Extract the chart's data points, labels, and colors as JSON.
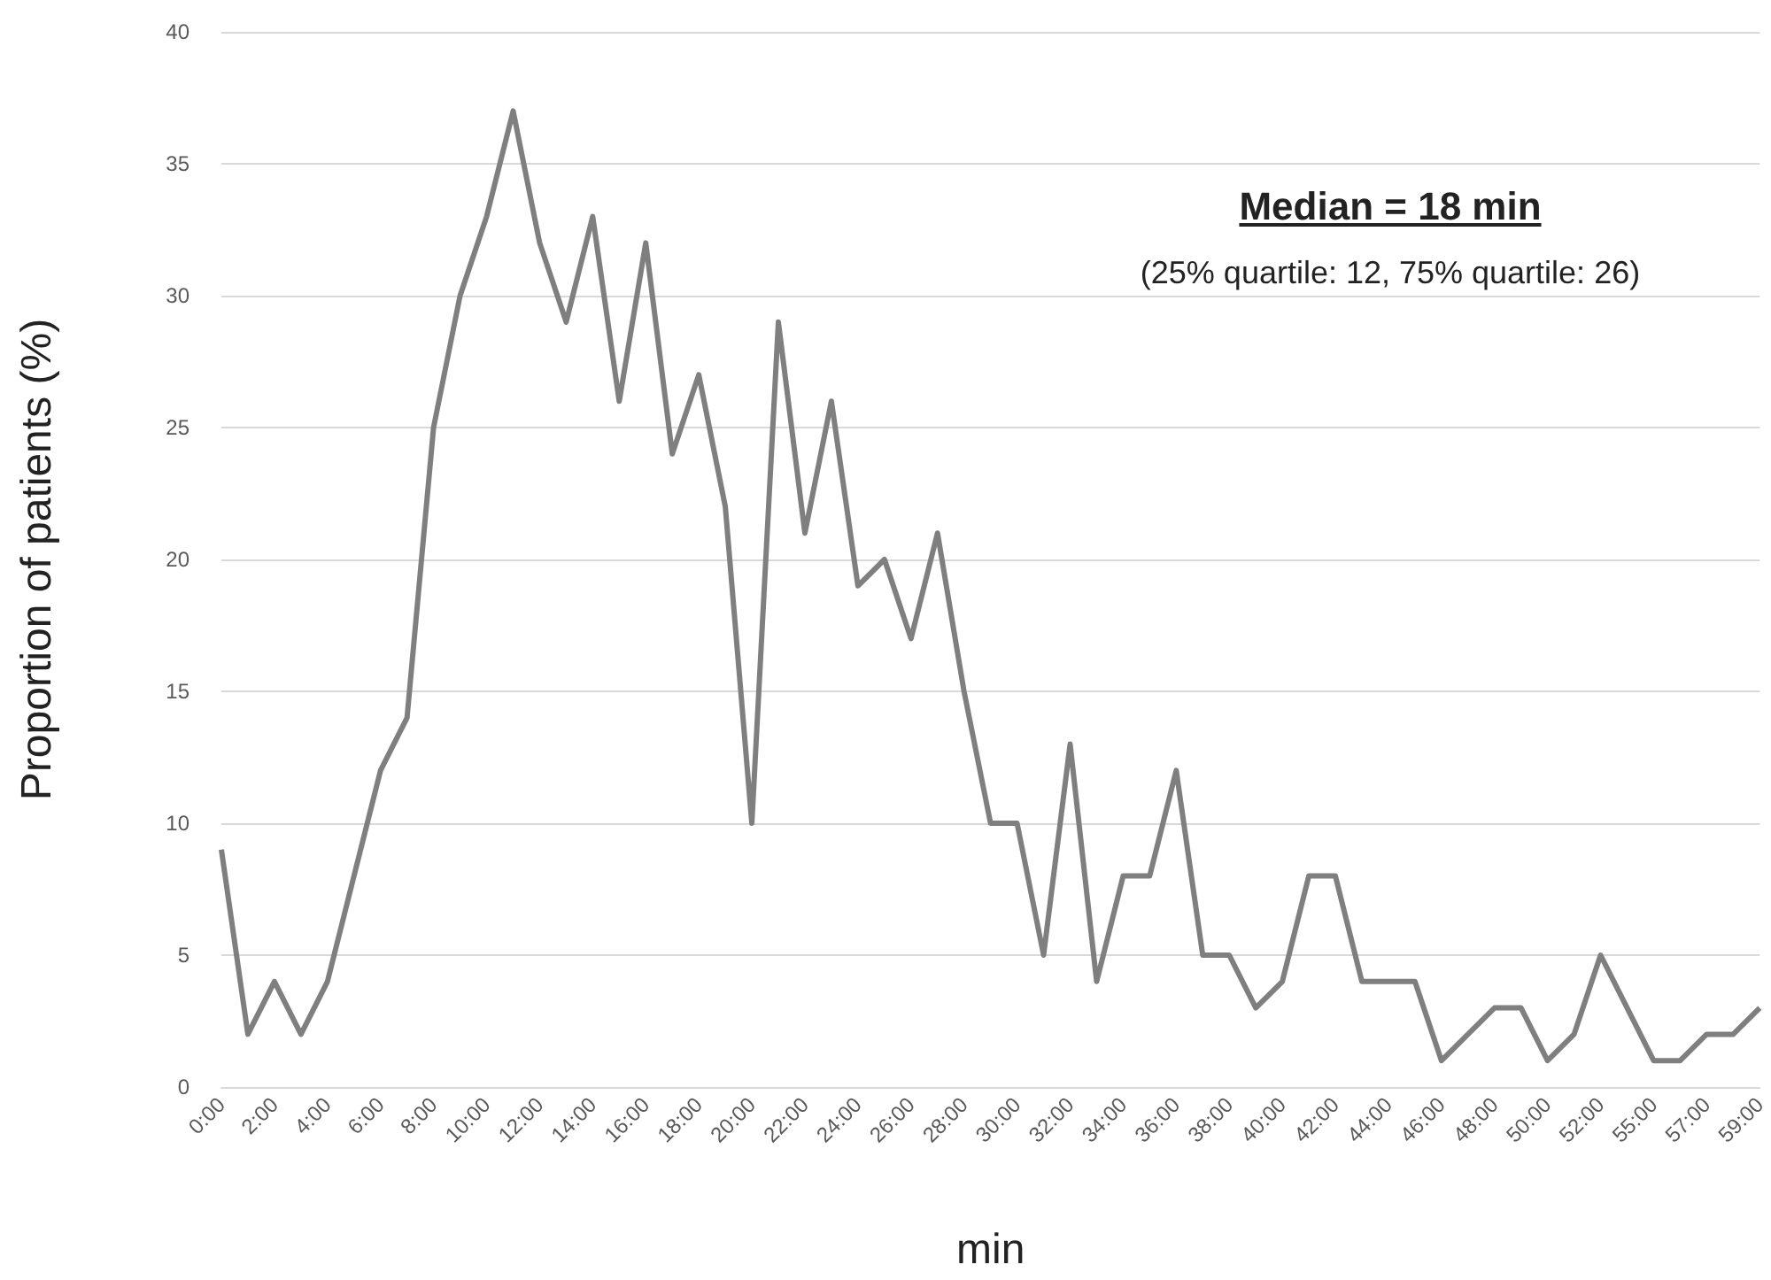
{
  "chart_data": {
    "type": "line",
    "xlabel": "min",
    "ylabel": "Proportion of patients (%)",
    "categories": [
      "0:00",
      null,
      "2:00",
      null,
      "4:00",
      null,
      "6:00",
      null,
      "8:00",
      null,
      "10:00",
      null,
      "12:00",
      null,
      "14:00",
      null,
      "16:00",
      null,
      "18:00",
      null,
      "20:00",
      null,
      "22:00",
      null,
      "24:00",
      null,
      "26:00",
      null,
      "28:00",
      null,
      "30:00",
      null,
      "32:00",
      null,
      "34:00",
      null,
      "36:00",
      null,
      "38:00",
      null,
      "40:00",
      null,
      "42:00",
      null,
      "44:00",
      null,
      "46:00",
      null,
      "48:00",
      null,
      "50:00",
      null,
      "52:00",
      null,
      "55:00",
      null,
      "57:00",
      null,
      "59:00"
    ],
    "series": [
      {
        "color": "#7f7f7f",
        "values": [
          9,
          2,
          4,
          2,
          4,
          8,
          12,
          14,
          25,
          30,
          33,
          37,
          32,
          29,
          33,
          26,
          32,
          24,
          27,
          22,
          10,
          29,
          21,
          26,
          19,
          20,
          17,
          21,
          15,
          10,
          10,
          5,
          13,
          4,
          8,
          8,
          12,
          5,
          5,
          3,
          4,
          8,
          8,
          4,
          4,
          4,
          1,
          2,
          3,
          3,
          1,
          2,
          5,
          3,
          1,
          1,
          2,
          2,
          3
        ]
      }
    ],
    "ylim": [
      0,
      40
    ],
    "yticks": [
      0,
      5,
      10,
      15,
      20,
      25,
      30,
      35,
      40
    ],
    "grid": "y",
    "marker": "none",
    "line_style": "solid",
    "annotations": [
      "Median = 18 min",
      "(25% quartile: 12, 75% quartile: 26)"
    ]
  }
}
